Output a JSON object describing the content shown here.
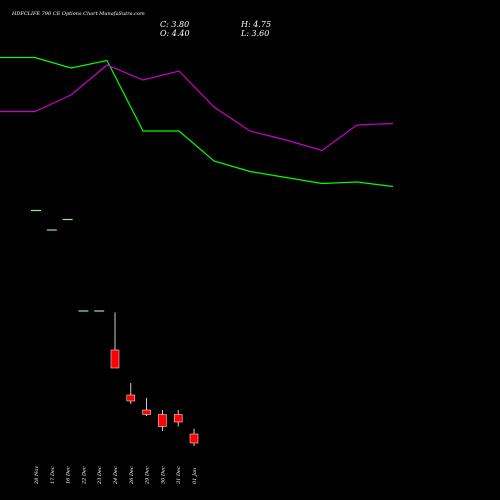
{
  "chart_data": {
    "type": "candlestick",
    "title": "HDFCLIFE 790  CE Options  Chart MunafaSutra.com",
    "ohlc_readout": {
      "c": "C: 3.80",
      "h": "H: 4.75",
      "o": "O: 4.40",
      "l": "L: 3.60"
    },
    "categories": [
      "28 Nov",
      "17 Dec",
      "16 Dec",
      "22 Dec",
      "23 Dec",
      "24 Dec",
      "26 Dec",
      "29 Dec",
      "30 Dec",
      "31 Dec",
      "01 Jan"
    ],
    "ylim": [
      0,
      30
    ],
    "candles": [
      {
        "x": "28 Nov",
        "open": 19.3,
        "high": 19.3,
        "low": 19.3,
        "close": 19.3
      },
      {
        "x": "17 Dec",
        "open": 18.0,
        "high": 18.0,
        "low": 18.0,
        "close": 18.0
      },
      {
        "x": "16 Dec",
        "open": 18.7,
        "high": 18.7,
        "low": 18.7,
        "close": 18.7
      },
      {
        "x": "22 Dec",
        "open": 12.6,
        "high": 12.6,
        "low": 12.6,
        "close": 12.6
      },
      {
        "x": "23 Dec",
        "open": 12.6,
        "high": 12.6,
        "low": 12.6,
        "close": 12.6
      },
      {
        "x": "24 Dec",
        "open": 10.0,
        "high": 12.5,
        "low": 8.8,
        "close": 8.8
      },
      {
        "x": "26 Dec",
        "open": 7.0,
        "high": 7.8,
        "low": 6.4,
        "close": 6.6
      },
      {
        "x": "29 Dec",
        "open": 6.0,
        "high": 6.8,
        "low": 5.6,
        "close": 5.7
      },
      {
        "x": "30 Dec",
        "open": 5.7,
        "high": 6.0,
        "low": 4.6,
        "close": 4.9
      },
      {
        "x": "31 Dec",
        "open": 5.7,
        "high": 6.0,
        "low": 4.9,
        "close": 5.2
      },
      {
        "x": "01 Jan",
        "open": 4.4,
        "high": 4.75,
        "low": 3.6,
        "close": 3.8
      }
    ],
    "series": [
      {
        "color": "#00ff00",
        "points": [
          [
            0,
            29.5
          ],
          [
            35,
            29.5
          ],
          [
            71,
            28.8
          ],
          [
            107,
            29.3
          ],
          [
            143,
            24.6
          ],
          [
            179,
            24.6
          ],
          [
            214,
            22.6
          ],
          [
            250,
            21.9
          ],
          [
            286,
            21.5
          ],
          [
            322,
            21.1
          ],
          [
            357,
            21.2
          ],
          [
            393,
            20.9
          ]
        ]
      },
      {
        "color": "#cc00cc",
        "points": [
          [
            0,
            25.9
          ],
          [
            35,
            25.9
          ],
          [
            71,
            27.0
          ],
          [
            107,
            29.0
          ],
          [
            143,
            28.0
          ],
          [
            179,
            28.6
          ],
          [
            214,
            26.2
          ],
          [
            250,
            24.6
          ],
          [
            286,
            24.0
          ],
          [
            322,
            23.3
          ],
          [
            357,
            25.0
          ],
          [
            393,
            25.1
          ]
        ]
      }
    ],
    "colors": {
      "background": "#000000",
      "up_candle": "#00ff00",
      "down_candle": "#ff0000",
      "doji_candle": "#90ee90",
      "text": "#ffffff"
    },
    "grid": false
  }
}
